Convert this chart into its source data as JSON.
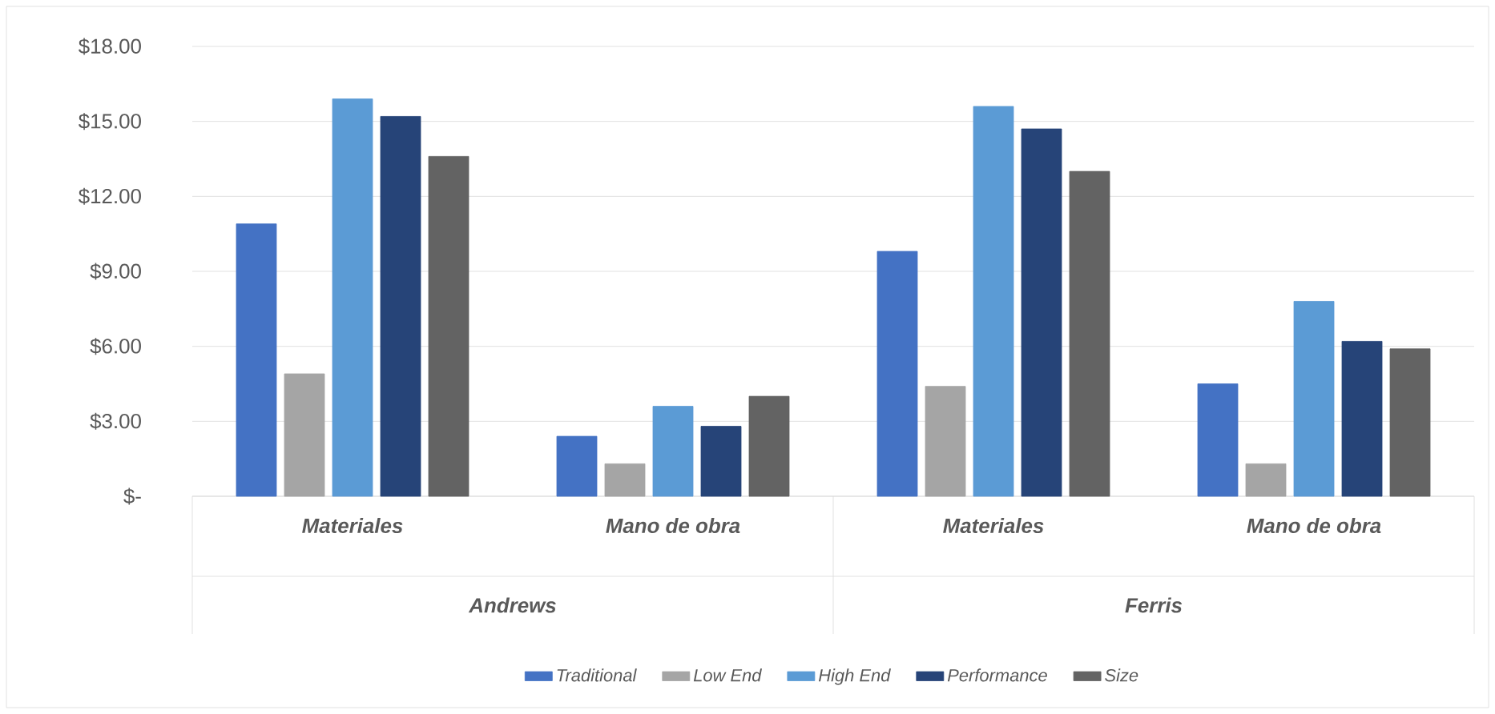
{
  "chart_data": {
    "type": "bar",
    "categories": [
      "Materiales",
      "Mano de obra",
      "Materiales",
      "Mano de obra"
    ],
    "annotations": [
      "Andrews",
      "Ferris"
    ],
    "series": [
      {
        "name": "Traditional",
        "color": "#4472c4",
        "values": [
          10.9,
          2.4,
          9.8,
          4.5
        ]
      },
      {
        "name": "Low End",
        "color": "#a5a5a5",
        "values": [
          4.9,
          1.3,
          4.4,
          1.3
        ]
      },
      {
        "name": "High End",
        "color": "#5b9bd5",
        "values": [
          15.9,
          3.6,
          15.6,
          7.8
        ]
      },
      {
        "name": "Performance",
        "color": "#264478",
        "values": [
          15.2,
          2.8,
          14.7,
          6.2
        ]
      },
      {
        "name": "Size",
        "color": "#636363",
        "values": [
          13.6,
          4.0,
          13.0,
          5.9
        ]
      }
    ],
    "ylim": [
      0,
      18
    ],
    "yticks": [
      {
        "value": 0,
        "label": "$-"
      },
      {
        "value": 3,
        "label": "$3.00"
      },
      {
        "value": 6,
        "label": "$6.00"
      },
      {
        "value": 9,
        "label": "$9.00"
      },
      {
        "value": 12,
        "label": "$12.00"
      },
      {
        "value": 15,
        "label": "$15.00"
      },
      {
        "value": 18,
        "label": "$18.00"
      }
    ],
    "grid": "y",
    "legend": "bottom"
  }
}
